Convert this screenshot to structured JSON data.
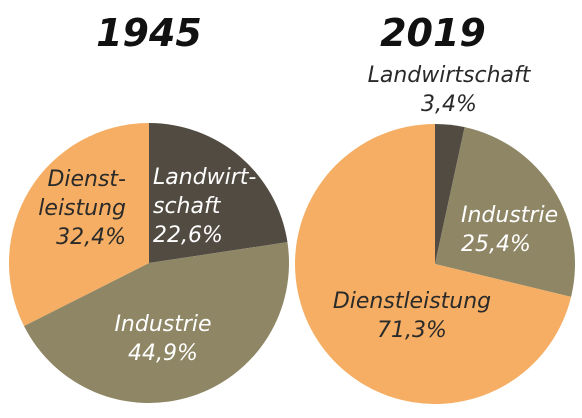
{
  "chart_data": [
    {
      "type": "pie",
      "title": "1945",
      "start_angle_deg": 0,
      "slices": [
        {
          "label_lines": [
            "Landwirt-",
            "schaft"
          ],
          "value_text": "22,6%",
          "value": 22.6,
          "color": "#524b42",
          "label_color": "light"
        },
        {
          "label_lines": [
            "Industrie"
          ],
          "value_text": "44,9%",
          "value": 44.9,
          "color": "#8e8665",
          "label_color": "light"
        },
        {
          "label_lines": [
            "Dienst-",
            "leistung"
          ],
          "value_text": "32,4%",
          "value": 32.4,
          "color": "#f5ae63",
          "label_color": "dark"
        }
      ]
    },
    {
      "type": "pie",
      "title": "2019",
      "start_angle_deg": 0,
      "slices": [
        {
          "label_lines": [
            "Landwirtschaft"
          ],
          "value_text": "3,4%",
          "value": 3.4,
          "color": "#524b42",
          "label_color": "dark",
          "label_outside": true
        },
        {
          "label_lines": [
            "Industrie"
          ],
          "value_text": "25,4%",
          "value": 25.4,
          "color": "#8e8665",
          "label_color": "light"
        },
        {
          "label_lines": [
            "Dienstleistung"
          ],
          "value_text": "71,3%",
          "value": 71.3,
          "color": "#f5ae63",
          "label_color": "dark"
        }
      ]
    }
  ]
}
